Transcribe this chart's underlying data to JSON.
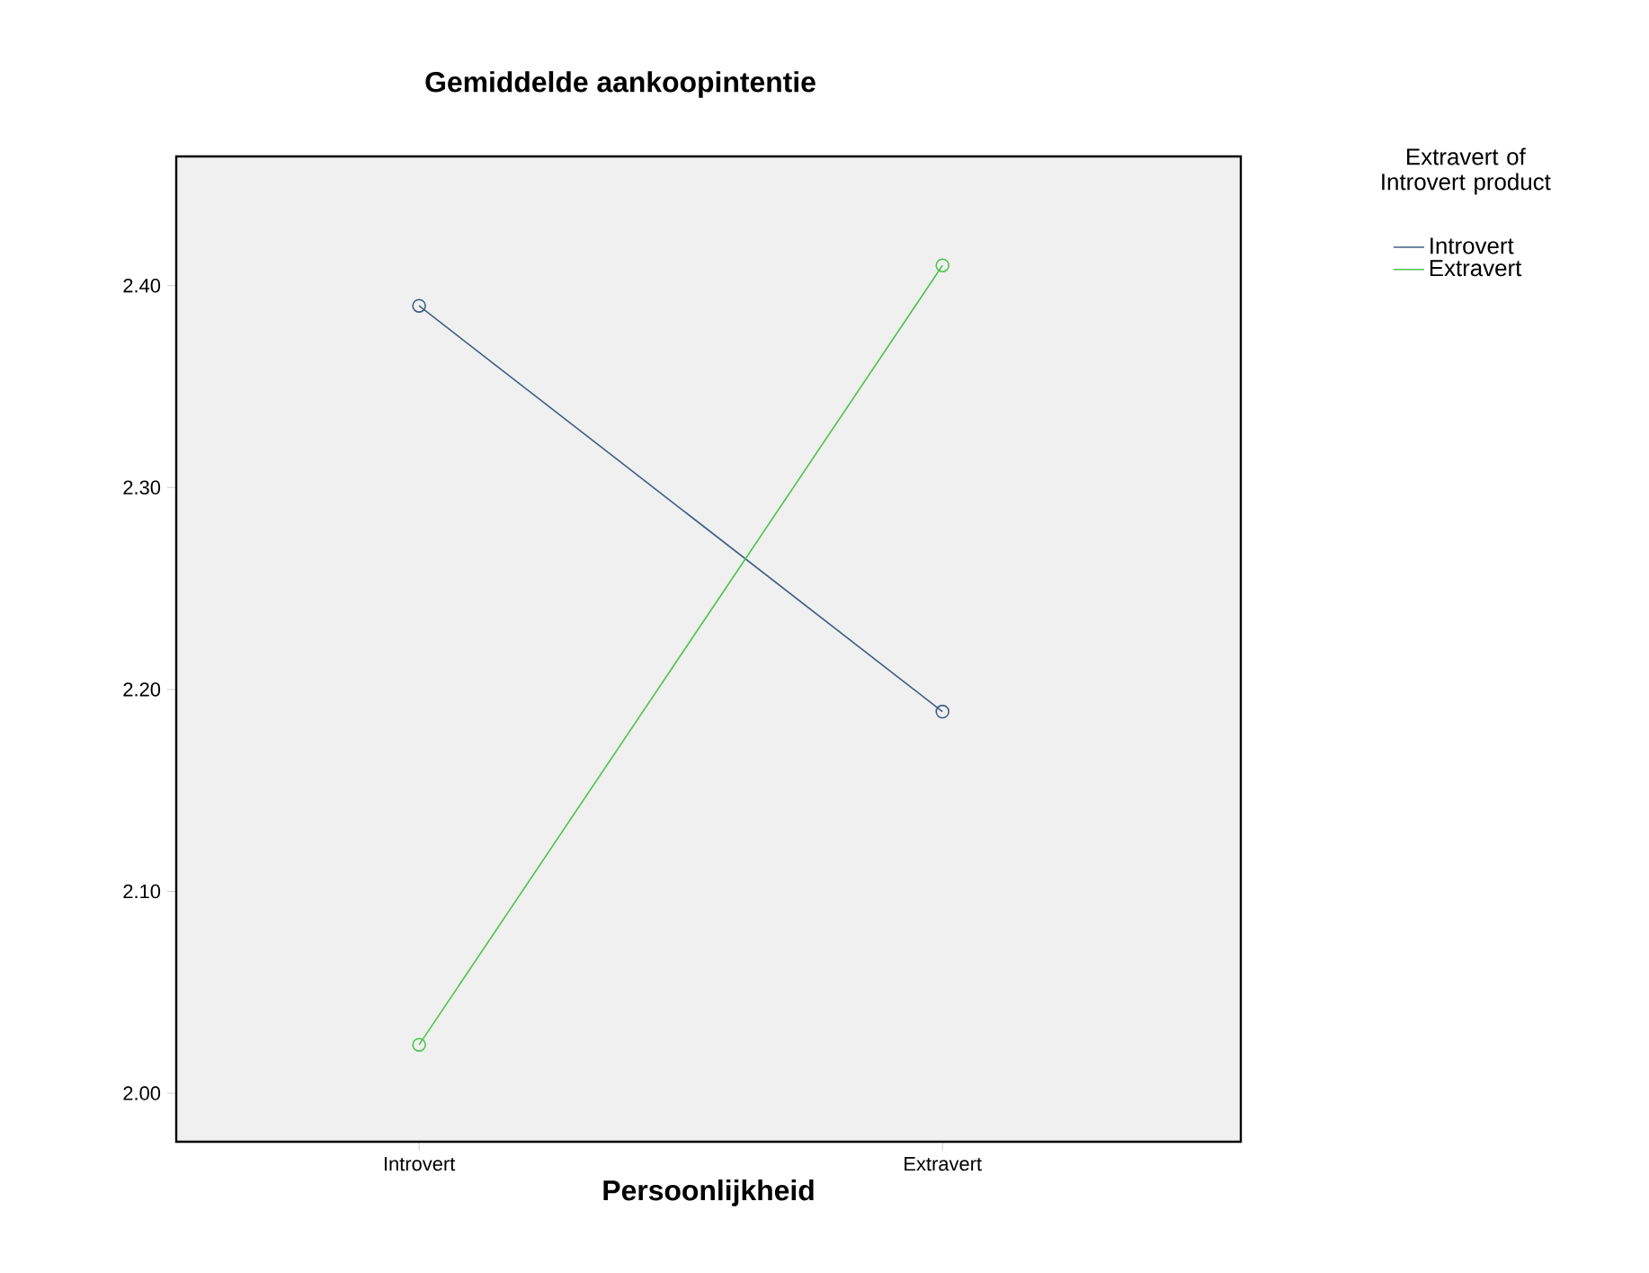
{
  "chart_data": {
    "type": "line",
    "title": "Gemiddelde aankoopintentie",
    "xlabel": "Persoonlijkheid",
    "legend_title": "Extravert of Introvert product",
    "categories": [
      "Introvert",
      "Extravert"
    ],
    "series": [
      {
        "name": "Introvert",
        "color": "#3f5f86",
        "values": [
          2.39,
          2.189
        ]
      },
      {
        "name": "Extravert",
        "color": "#4cc44c",
        "values": [
          2.024,
          2.41
        ]
      }
    ],
    "ylim": [
      1.976,
      2.464
    ],
    "yticks": [
      {
        "value": 2.0,
        "label": "2.00"
      },
      {
        "value": 2.1,
        "label": "2.10"
      },
      {
        "value": 2.2,
        "label": "2.20"
      },
      {
        "value": 2.3,
        "label": "2.30"
      },
      {
        "value": 2.4,
        "label": "2.40"
      }
    ],
    "marker": "circle",
    "legend": "right"
  }
}
